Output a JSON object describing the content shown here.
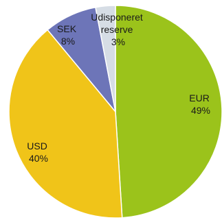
{
  "chart_data": {
    "type": "pie",
    "title": "",
    "slices": [
      {
        "label_lines": [
          "EUR"
        ],
        "value_label": "49%",
        "value": 49,
        "color": "#9bc31b"
      },
      {
        "label_lines": [
          "USD"
        ],
        "value_label": "40%",
        "value": 40,
        "color": "#f0c419"
      },
      {
        "label_lines": [
          "SEK"
        ],
        "value_label": "8%",
        "value": 8,
        "color": "#6d75b8"
      },
      {
        "label_lines": [
          "Udisponeret",
          "reserve"
        ],
        "value_label": "3%",
        "value": 3,
        "color": "#d6dde5"
      }
    ],
    "start": "12 o'clock",
    "direction": "clockwise",
    "legend": "none (labels inside slices)"
  }
}
